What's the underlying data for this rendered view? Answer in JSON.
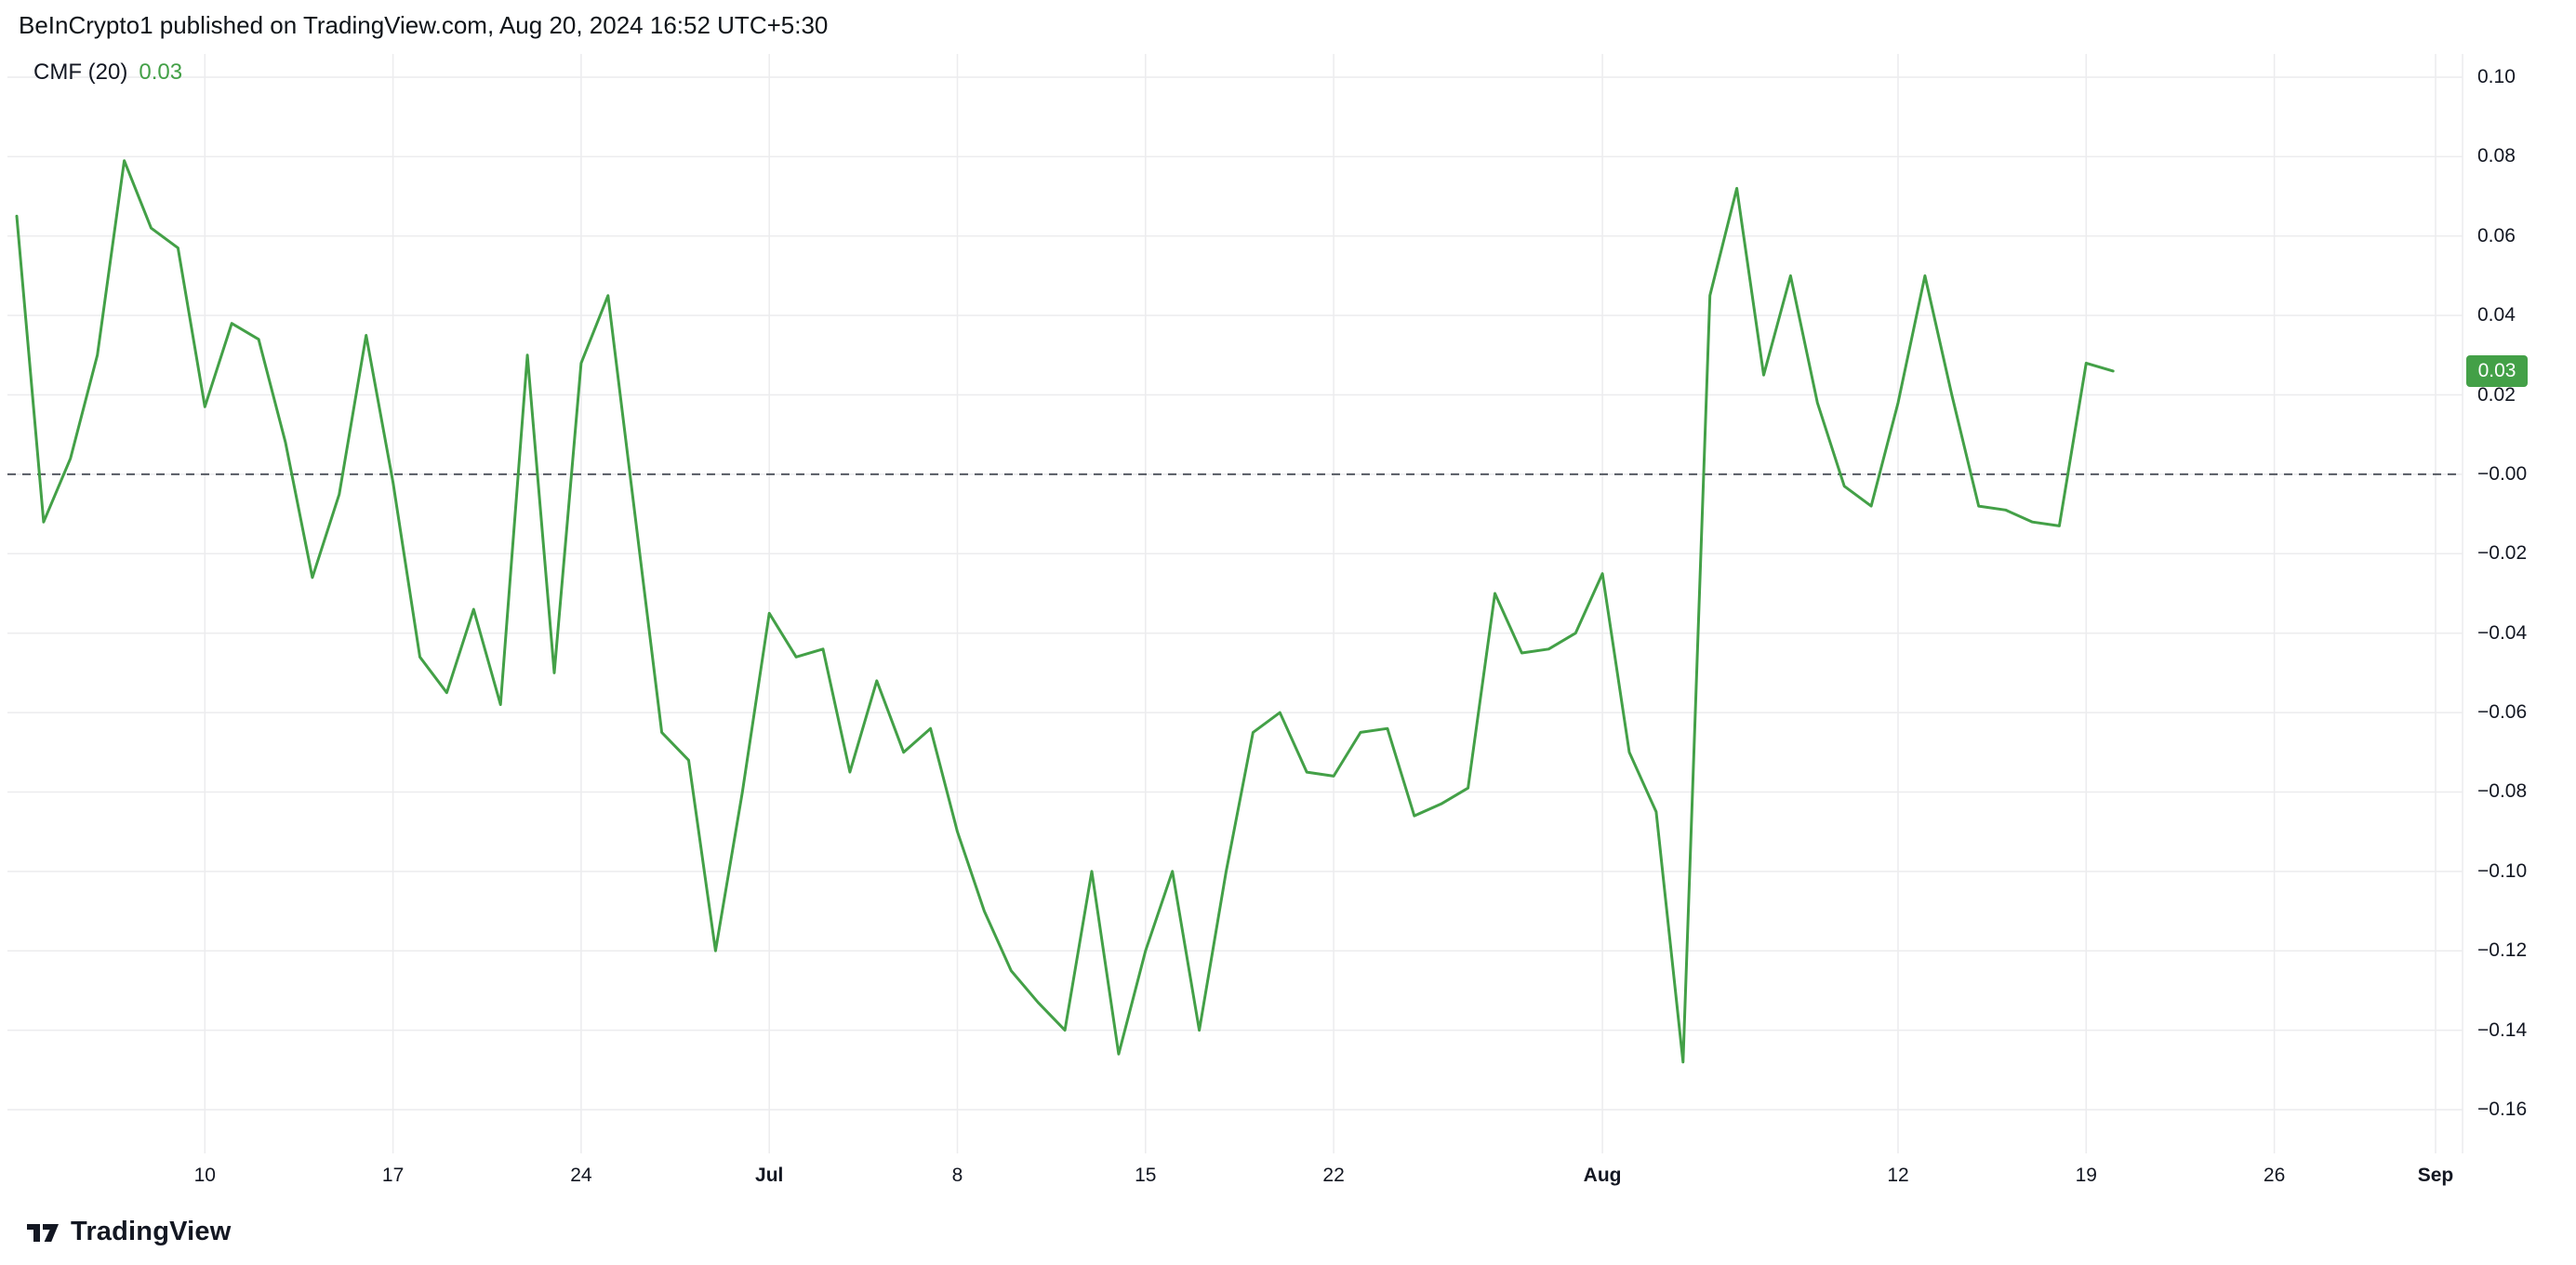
{
  "header": {
    "attribution": "BeInCrypto1 published on TradingView.com, Aug 20, 2024 16:52 UTC+5:30"
  },
  "indicator": {
    "name": "CMF (20)",
    "value": "0.03"
  },
  "price_badge": {
    "value": "0.03"
  },
  "footer": {
    "brand": "TradingView",
    "logo_icon": "tradingview-logo"
  },
  "colors": {
    "accent_green": "#43a047",
    "badge_green": "#43a047",
    "text_dark": "#131722",
    "grid": "#ececee",
    "zero_line": "#565a63",
    "background": "#ffffff"
  },
  "chart_data": {
    "type": "line",
    "title": "CMF (20)",
    "xlabel": "",
    "ylabel": "",
    "legend_position": "top-left",
    "grid": true,
    "x_interval": "daily",
    "x_start": "Jun 3",
    "x_end": "Aug 20",
    "ylim": [
      -0.17,
      0.11
    ],
    "zero_line": {
      "value": 0,
      "style": "dashed"
    },
    "last_value_label": "0.03",
    "y_ticks": {
      "values": [
        0.1,
        0.08,
        0.06,
        0.04,
        0.02,
        0,
        -0.02,
        -0.04,
        -0.06,
        -0.08,
        -0.1,
        -0.12,
        -0.14,
        -0.16
      ],
      "labels": [
        "0.10",
        "0.08",
        "0.06",
        "0.04",
        "0.02",
        "−0.00",
        "−0.02",
        "−0.04",
        "−0.06",
        "−0.08",
        "−0.10",
        "−0.12",
        "−0.14",
        "−0.16"
      ]
    },
    "x_ticks": [
      {
        "label": "10",
        "index": 7,
        "bold": false
      },
      {
        "label": "17",
        "index": 14,
        "bold": false
      },
      {
        "label": "24",
        "index": 21,
        "bold": false
      },
      {
        "label": "Jul",
        "index": 28,
        "bold": true
      },
      {
        "label": "8",
        "index": 35,
        "bold": false
      },
      {
        "label": "15",
        "index": 42,
        "bold": false
      },
      {
        "label": "22",
        "index": 49,
        "bold": false
      },
      {
        "label": "Aug",
        "index": 59,
        "bold": true
      },
      {
        "label": "12",
        "index": 70,
        "bold": false
      },
      {
        "label": "19",
        "index": 77,
        "bold": false
      },
      {
        "label": "26",
        "index": 84,
        "bold": false
      },
      {
        "label": "Sep",
        "index": 90,
        "bold": true
      }
    ],
    "series": [
      {
        "name": "CMF (20)",
        "color": "#43a047",
        "values": [
          0.065,
          -0.012,
          0.004,
          0.03,
          0.079,
          0.062,
          0.057,
          0.017,
          0.038,
          0.034,
          0.008,
          -0.026,
          -0.005,
          0.035,
          -0.002,
          -0.046,
          -0.055,
          -0.034,
          -0.058,
          0.03,
          -0.05,
          0.028,
          0.045,
          -0.01,
          -0.065,
          -0.072,
          -0.12,
          -0.08,
          -0.035,
          -0.046,
          -0.044,
          -0.075,
          -0.052,
          -0.07,
          -0.064,
          -0.09,
          -0.11,
          -0.125,
          -0.133,
          -0.14,
          -0.1,
          -0.146,
          -0.12,
          -0.1,
          -0.14,
          -0.1,
          -0.065,
          -0.06,
          -0.075,
          -0.076,
          -0.065,
          -0.064,
          -0.086,
          -0.083,
          -0.079,
          -0.03,
          -0.045,
          -0.044,
          -0.04,
          -0.025,
          -0.07,
          -0.085,
          -0.148,
          0.045,
          0.072,
          0.025,
          0.05,
          0.018,
          -0.003,
          -0.008,
          0.018,
          0.05,
          0.02,
          -0.008,
          -0.009,
          -0.012,
          -0.013,
          0.028,
          0.026
        ]
      }
    ]
  }
}
